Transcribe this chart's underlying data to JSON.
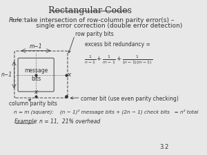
{
  "title": "Rectangular Codes",
  "rule_label": "Rule:",
  "rule_text1": " take intersection of row-column parity error(s) –",
  "rule_text2": "       single error correction (double error detection)",
  "bg_color": "#e8e8e8",
  "label_m1": "m−1",
  "label_n1": "n−1",
  "label_row_parity": "row parity bits",
  "label_col_parity": "column parity bits",
  "label_corner": "corner bit (use even parity checking)",
  "label_message": "message\nbits",
  "label_x1": "x",
  "label_x2": "x",
  "redundancy_title": "excess bit redundancy =",
  "square_text": "n = m (square):    (n − 1)² message bits + (2n − 1) check bits   = n² total",
  "example_label": "Example",
  "example_text": ": n = 11,  21% overhead",
  "page_num": "3.2",
  "font_color": "#333333"
}
